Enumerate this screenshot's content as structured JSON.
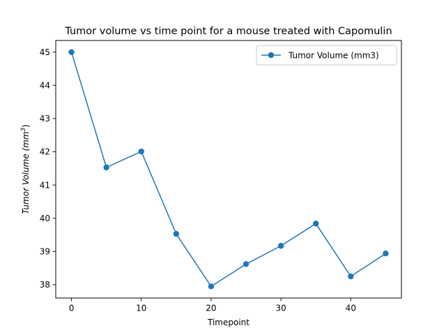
{
  "chart_data": {
    "type": "line",
    "title": "Tumor volume vs time point for a mouse treated with Capomulin",
    "xlabel": "Timepoint",
    "ylabel": {
      "prefix": "Tumor Volume (",
      "unit_base": "mm",
      "unit_exponent": "3",
      "suffix": ")"
    },
    "xlim": [
      -2.25,
      47.25
    ],
    "ylim": [
      37.6,
      45.35
    ],
    "x_ticks": [
      0,
      10,
      20,
      30,
      40
    ],
    "x_tick_labels": [
      "0",
      "10",
      "20",
      "30",
      "40"
    ],
    "y_ticks": [
      38,
      39,
      40,
      41,
      42,
      43,
      44,
      45
    ],
    "y_tick_labels": [
      "38",
      "39",
      "40",
      "41",
      "42",
      "43",
      "44",
      "45"
    ],
    "grid": false,
    "legend_position": "upper right",
    "series": [
      {
        "name": "Tumor Volume (mm3)",
        "color": "#1f77b4",
        "marker": "circle",
        "x": [
          0,
          5,
          10,
          15,
          20,
          25,
          30,
          35,
          40,
          45
        ],
        "y": [
          45.0,
          41.53,
          42.01,
          39.53,
          37.95,
          38.62,
          39.17,
          39.84,
          38.25,
          38.94
        ]
      }
    ]
  }
}
